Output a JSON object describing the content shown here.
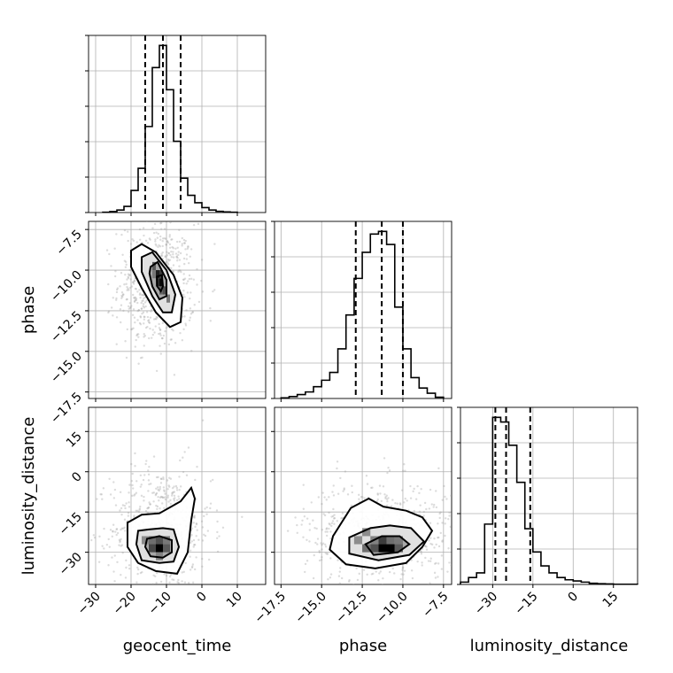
{
  "chart_data": {
    "type": "corner",
    "parameters": [
      "geocent_time",
      "phase",
      "luminosity_distance"
    ],
    "axes": {
      "geocent_time": {
        "range": [
          -32,
          18
        ],
        "ticks": [
          -30,
          -20,
          -10,
          0,
          10
        ],
        "tick_labels": [
          "−30",
          "−20",
          "−10",
          "0",
          "10"
        ]
      },
      "phase": {
        "range": [
          -17.9,
          -7.0
        ],
        "ticks": [
          -17.5,
          -15.0,
          -12.5,
          -10.0,
          -7.5
        ],
        "tick_labels": [
          "−17.5",
          "−15.0",
          "−12.5",
          "−10.0",
          "−7.5"
        ]
      },
      "luminosity_distance": {
        "range": [
          -42,
          24
        ],
        "ticks": [
          -30,
          -15,
          0,
          15
        ],
        "tick_labels": [
          "−30",
          "−15",
          "0",
          "15"
        ]
      }
    },
    "grid": true,
    "histograms": [
      {
        "parameter": "geocent_time",
        "bin_edges": [
          -28,
          -26,
          -24,
          -22,
          -20,
          -18,
          -16,
          -14,
          -12,
          -10,
          -8,
          -6,
          -4,
          -2,
          0,
          2,
          4,
          6,
          8,
          10
        ],
        "counts": [
          0.2,
          0.8,
          2,
          5,
          18,
          36,
          70,
          118,
          136,
          100,
          58,
          28,
          14,
          8,
          4,
          2,
          1,
          0.5,
          0.2
        ],
        "quantiles": [
          -16.0,
          -11.0,
          -6.0
        ]
      },
      {
        "parameter": "phase",
        "bin_edges": [
          -17.5,
          -17,
          -16.5,
          -16,
          -15.5,
          -15,
          -14.5,
          -14,
          -13.5,
          -13,
          -12.5,
          -12,
          -11.5,
          -11,
          -10.5,
          -10,
          -9.5,
          -9,
          -8.5,
          -8,
          -7.5
        ],
        "counts": [
          0.5,
          1.5,
          3,
          5,
          9,
          14,
          20,
          38,
          64,
          92,
          112,
          126,
          128,
          118,
          70,
          38,
          16,
          8,
          4,
          1
        ],
        "quantiles": [
          -12.9,
          -11.3,
          -10.0
        ]
      },
      {
        "parameter": "luminosity_distance",
        "bin_edges": [
          -42,
          -39,
          -36,
          -33,
          -30,
          -27,
          -24,
          -21,
          -18,
          -15,
          -12,
          -9,
          -6,
          -3,
          0,
          3,
          6,
          9,
          12,
          15,
          18,
          21,
          24
        ],
        "counts": [
          1,
          3,
          5,
          26,
          72,
          70,
          60,
          44,
          24,
          14,
          8,
          5,
          3,
          2,
          1.5,
          1,
          0.5,
          0.3,
          0.2,
          0.1,
          0.1,
          0.1
        ],
        "quantiles": [
          -29.0,
          -25.0,
          -16.0
        ]
      }
    ],
    "scatter_panels": [
      {
        "x": "geocent_time",
        "y": "phase",
        "peak": [
          -12,
          -10.7
        ],
        "density_cells": [
          {
            "x": [
              -12,
              -11
            ],
            "y": [
              -11,
              -10.5
            ],
            "level": 0.95
          },
          {
            "x": [
              -13,
              -12
            ],
            "y": [
              -10.5,
              -10
            ],
            "level": 0.85
          },
          {
            "x": [
              -13,
              -12
            ],
            "y": [
              -11,
              -10.5
            ],
            "level": 0.75
          },
          {
            "x": [
              -12,
              -11
            ],
            "y": [
              -10.5,
              -10
            ],
            "level": 0.7
          },
          {
            "x": [
              -11,
              -10
            ],
            "y": [
              -11.5,
              -11
            ],
            "level": 0.6
          },
          {
            "x": [
              -14,
              -13
            ],
            "y": [
              -10,
              -9.5
            ],
            "level": 0.55
          },
          {
            "x": [
              -12,
              -11
            ],
            "y": [
              -11.5,
              -11
            ],
            "level": 0.5
          },
          {
            "x": [
              -10,
              -9
            ],
            "y": [
              -12,
              -11.5
            ],
            "level": 0.4
          },
          {
            "x": [
              -14,
              -13
            ],
            "y": [
              -10.5,
              -10
            ],
            "level": 0.4
          }
        ],
        "contours": [
          [
            [
              -20,
              -8.8
            ],
            [
              -17,
              -8.4
            ],
            [
              -13,
              -8.9
            ],
            [
              -8,
              -10.3
            ],
            [
              -5.5,
              -11.7
            ],
            [
              -6,
              -13.2
            ],
            [
              -9,
              -13.5
            ],
            [
              -13,
              -12.6
            ],
            [
              -17,
              -11.1
            ],
            [
              -20,
              -9.8
            ]
          ],
          [
            [
              -17,
              -9.2
            ],
            [
              -14,
              -8.9
            ],
            [
              -10,
              -10
            ],
            [
              -7.5,
              -11.5
            ],
            [
              -8.5,
              -12.6
            ],
            [
              -11,
              -12.6
            ],
            [
              -14,
              -11.6
            ],
            [
              -17,
              -10.1
            ]
          ],
          [
            [
              -14.5,
              -9.8
            ],
            [
              -12.5,
              -9.5
            ],
            [
              -10,
              -10.6
            ],
            [
              -10,
              -11.6
            ],
            [
              -12,
              -11.8
            ],
            [
              -14,
              -11
            ],
            [
              -14.8,
              -10.2
            ]
          ],
          [
            [
              -12.7,
              -10.4
            ],
            [
              -11.3,
              -10.3
            ],
            [
              -11,
              -11
            ],
            [
              -11.6,
              -11.3
            ],
            [
              -12.6,
              -11
            ]
          ]
        ]
      },
      {
        "x": "geocent_time",
        "y": "luminosity_distance",
        "peak": [
          -12,
          -29
        ],
        "density_cells": [
          {
            "x": [
              -13,
              -11
            ],
            "y": [
              -30,
              -27
            ],
            "level": 1.0
          },
          {
            "x": [
              -15,
              -13
            ],
            "y": [
              -30,
              -27
            ],
            "level": 0.65
          },
          {
            "x": [
              -13,
              -11
            ],
            "y": [
              -27,
              -24
            ],
            "level": 0.6
          },
          {
            "x": [
              -11,
              -9
            ],
            "y": [
              -30,
              -27
            ],
            "level": 0.55
          },
          {
            "x": [
              -15,
              -13
            ],
            "y": [
              -27,
              -24
            ],
            "level": 0.45
          },
          {
            "x": [
              -11,
              -9
            ],
            "y": [
              -27,
              -24
            ],
            "level": 0.4
          },
          {
            "x": [
              -13,
              -11
            ],
            "y": [
              -33,
              -30
            ],
            "level": 0.35
          },
          {
            "x": [
              -17,
              -15
            ],
            "y": [
              -27,
              -24
            ],
            "level": 0.3
          }
        ],
        "contours": [
          [
            [
              -21,
              -19
            ],
            [
              -17,
              -16
            ],
            [
              -12,
              -15.5
            ],
            [
              -6,
              -11
            ],
            [
              -3,
              -6
            ],
            [
              -2,
              -10
            ],
            [
              -3,
              -18
            ],
            [
              -4,
              -30
            ],
            [
              -7,
              -38
            ],
            [
              -13,
              -37
            ],
            [
              -18,
              -34
            ],
            [
              -21,
              -28
            ]
          ],
          [
            [
              -18,
              -22
            ],
            [
              -15,
              -21.5
            ],
            [
              -11,
              -21
            ],
            [
              -8,
              -21.5
            ],
            [
              -6.5,
              -28
            ],
            [
              -8,
              -33.5
            ],
            [
              -12,
              -34
            ],
            [
              -17,
              -33
            ],
            [
              -18.5,
              -27
            ]
          ],
          [
            [
              -15.5,
              -25
            ],
            [
              -12,
              -24
            ],
            [
              -8.5,
              -25.5
            ],
            [
              -8.5,
              -30
            ],
            [
              -11,
              -32
            ],
            [
              -14.5,
              -31.5
            ],
            [
              -16,
              -28
            ]
          ]
        ]
      },
      {
        "x": "phase",
        "y": "luminosity_distance",
        "peak": [
          -11.0,
          -29
        ],
        "density_cells": [
          {
            "x": [
              -11.5,
              -10.5
            ],
            "y": [
              -30,
              -27
            ],
            "level": 1.0
          },
          {
            "x": [
              -11.5,
              -11
            ],
            "y": [
              -27,
              -24
            ],
            "level": 0.7
          },
          {
            "x": [
              -12,
              -11.5
            ],
            "y": [
              -30,
              -27
            ],
            "level": 0.6
          },
          {
            "x": [
              -10.5,
              -10
            ],
            "y": [
              -30,
              -27
            ],
            "level": 0.55
          },
          {
            "x": [
              -12.5,
              -12
            ],
            "y": [
              -30,
              -27
            ],
            "level": 0.45
          },
          {
            "x": [
              -11,
              -10.5
            ],
            "y": [
              -27,
              -24
            ],
            "level": 0.45
          },
          {
            "x": [
              -10.5,
              -10
            ],
            "y": [
              -27,
              -24
            ],
            "level": 0.4
          },
          {
            "x": [
              -12,
              -11.5
            ],
            "y": [
              -27,
              -24
            ],
            "level": 0.35
          },
          {
            "x": [
              -13,
              -12.5
            ],
            "y": [
              -27,
              -24
            ],
            "level": 0.3
          },
          {
            "x": [
              -12.5,
              -12
            ],
            "y": [
              -24,
              -21
            ],
            "level": 0.3
          }
        ],
        "contours": [
          [
            [
              -14.3,
              -24
            ],
            [
              -13.2,
              -13.5
            ],
            [
              -12.1,
              -10
            ],
            [
              -11.2,
              -13
            ],
            [
              -9.8,
              -14.5
            ],
            [
              -8.8,
              -17
            ],
            [
              -8.2,
              -22
            ],
            [
              -8.8,
              -28
            ],
            [
              -9.8,
              -34
            ],
            [
              -11.7,
              -36
            ],
            [
              -13.5,
              -34.5
            ],
            [
              -14.5,
              -29
            ]
          ],
          [
            [
              -13.3,
              -24.5
            ],
            [
              -12,
              -21
            ],
            [
              -10.8,
              -20
            ],
            [
              -9.5,
              -21
            ],
            [
              -8.7,
              -26
            ],
            [
              -9.6,
              -31
            ],
            [
              -11.5,
              -33
            ],
            [
              -13.3,
              -30.5
            ]
          ],
          [
            [
              -12.3,
              -27
            ],
            [
              -11.3,
              -24
            ],
            [
              -10.2,
              -24
            ],
            [
              -9.6,
              -27
            ],
            [
              -10.3,
              -30
            ],
            [
              -11.8,
              -31
            ]
          ]
        ]
      }
    ]
  }
}
